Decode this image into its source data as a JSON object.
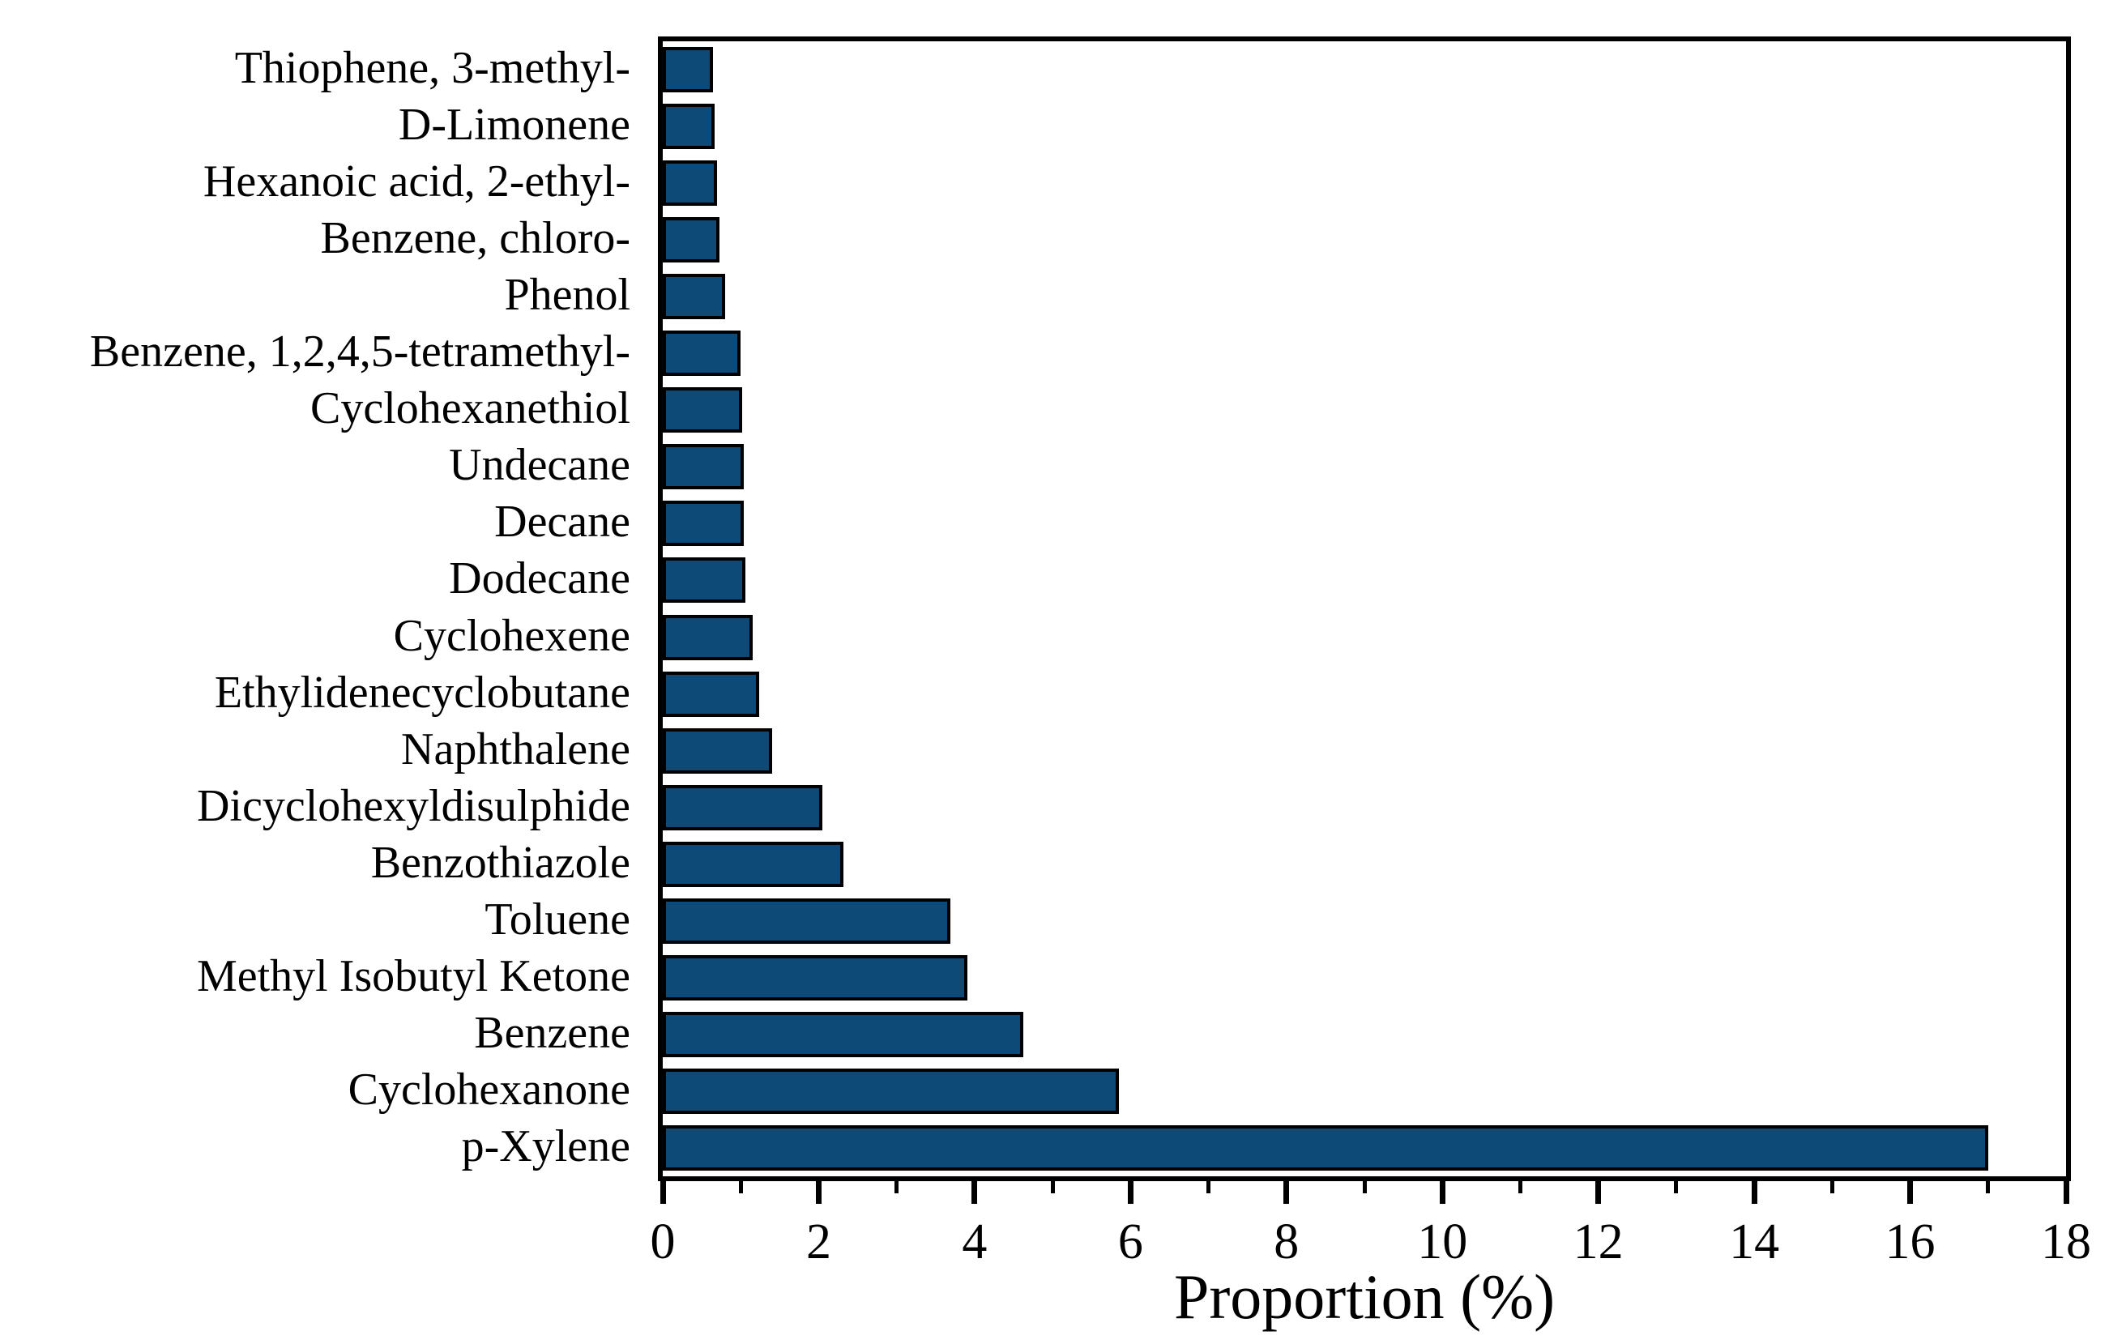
{
  "chart_data": {
    "type": "bar",
    "orientation": "horizontal",
    "title": "",
    "xlabel": "Proportion (%)",
    "ylabel": "",
    "xlim": [
      0,
      18
    ],
    "x_major_ticks": [
      0,
      2,
      4,
      6,
      8,
      10,
      12,
      14,
      16,
      18
    ],
    "x_minor_ticks": [
      1,
      3,
      5,
      7,
      9,
      11,
      13,
      15,
      17
    ],
    "grid": false,
    "legend": false,
    "bar_fill_color": "#0d4a78",
    "bar_border_color": "#000000",
    "frame_color": "#000000",
    "background_color": "#ffffff",
    "categories": [
      "Thiophene, 3-methyl-",
      "D-Limonene",
      "Hexanoic acid, 2-ethyl-",
      "Benzene, chloro-",
      "Phenol",
      "Benzene, 1,2,4,5-tetramethyl-",
      "Cyclohexanethiol",
      "Undecane",
      "Decane",
      "Dodecane",
      "Cyclohexene",
      "Ethylidenecyclobutane",
      "Naphthalene",
      "Dicyclohexyldisulphide",
      "Benzothiazole",
      "Toluene",
      "Methyl Isobutyl Ketone",
      "Benzene",
      "Cyclohexanone",
      "p-Xylene"
    ],
    "values": [
      0.64,
      0.67,
      0.7,
      0.73,
      0.8,
      1.0,
      1.02,
      1.04,
      1.04,
      1.06,
      1.15,
      1.24,
      1.4,
      2.05,
      2.32,
      3.69,
      3.91,
      4.62,
      5.85,
      17.0
    ]
  }
}
